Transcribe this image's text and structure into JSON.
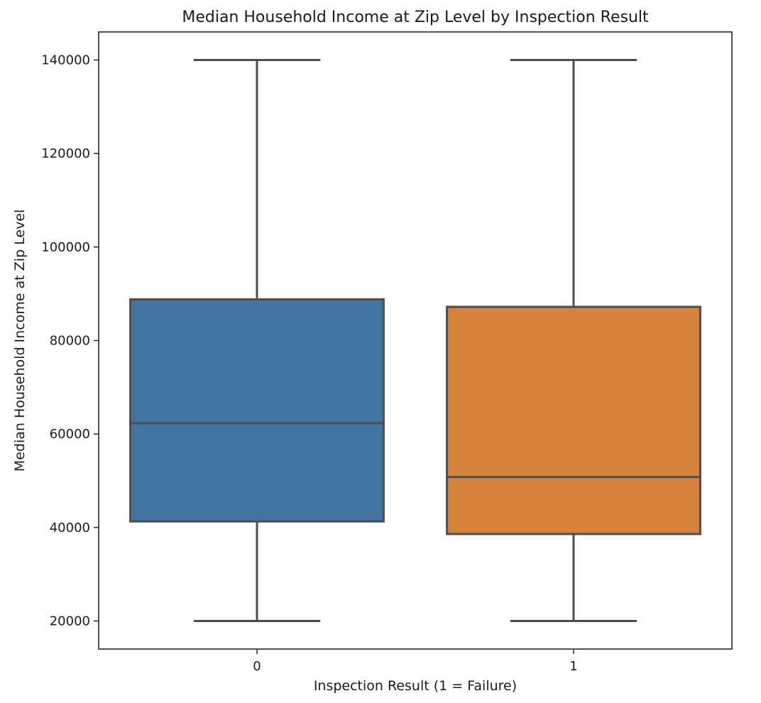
{
  "chart_data": {
    "type": "box",
    "title": "Median Household Income at Zip Level by Inspection Result",
    "xlabel": "Inspection Result (1 = Failure)",
    "ylabel": "Median Household Income at Zip Level",
    "categories": [
      "0",
      "1"
    ],
    "ylim": [
      14000,
      146000
    ],
    "yticks": [
      20000,
      40000,
      60000,
      80000,
      100000,
      120000,
      140000
    ],
    "grid": false,
    "series": [
      {
        "category": "0",
        "color": "#4373a0",
        "whisker_low": 20000,
        "q1": 41300,
        "median": 62300,
        "q3": 88800,
        "whisker_high": 140000
      },
      {
        "category": "1",
        "color": "#d6843d",
        "whisker_low": 20000,
        "q1": 38600,
        "median": 50800,
        "q3": 87200,
        "whisker_high": 140000
      }
    ],
    "line_color": "#4d4d4d"
  }
}
